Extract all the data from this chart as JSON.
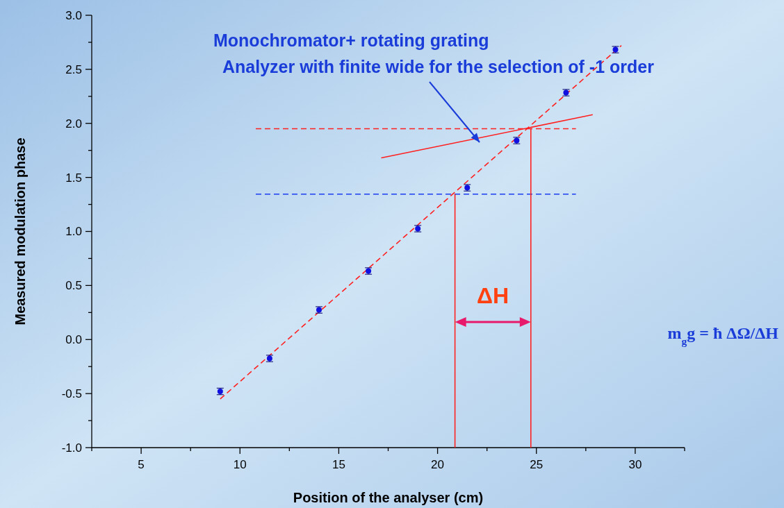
{
  "chart_data": {
    "type": "scatter",
    "xlabel": "Position of the analyser (cm)",
    "ylabel": "Measured modulation phase",
    "xlim": [
      2.5,
      32.5
    ],
    "ylim": [
      -1.0,
      3.0
    ],
    "xticks": [
      {
        "value": 2.5,
        "label": null
      },
      5,
      {
        "value": 7.5,
        "label": null
      },
      10,
      {
        "value": 12.5,
        "label": null
      },
      15,
      {
        "value": 17.5,
        "label": null
      },
      20,
      {
        "value": 22.5,
        "label": null
      },
      25,
      {
        "value": 27.5,
        "label": null
      },
      30,
      {
        "value": 32.5,
        "label": null
      }
    ],
    "yticks": [
      {
        "value": -1.0,
        "label": "-1.0"
      },
      {
        "value": -0.75,
        "label": null
      },
      {
        "value": -0.5,
        "label": "-0.5"
      },
      {
        "value": -0.25,
        "label": null
      },
      {
        "value": 0,
        "label": "0.0"
      },
      {
        "value": 0.25,
        "label": null
      },
      {
        "value": 0.5,
        "label": "0.5"
      },
      {
        "value": 0.75,
        "label": null
      },
      {
        "value": 1.0,
        "label": "1.0"
      },
      {
        "value": 1.25,
        "label": null
      },
      {
        "value": 1.5,
        "label": "1.5"
      },
      {
        "value": 1.75,
        "label": null
      },
      {
        "value": 2.0,
        "label": "2.0"
      },
      {
        "value": 2.25,
        "label": null
      },
      {
        "value": 2.5,
        "label": "2.5"
      },
      {
        "value": 2.75,
        "label": null
      },
      {
        "value": 3.0,
        "label": "3.0"
      }
    ],
    "grid": false,
    "series": [
      {
        "type": "line",
        "color": "#ff2020",
        "line_style": "dashed",
        "marker": "none",
        "x": [
          9.0,
          29.3
        ],
        "values": [
          -0.55,
          2.72
        ]
      },
      {
        "type": "line",
        "color": "#ff2020",
        "line_style": "solid",
        "marker": "none",
        "x": [
          17.15,
          27.85
        ],
        "values": [
          1.68,
          2.08
        ]
      },
      {
        "type": "line",
        "color": "#ff2020",
        "line_style": "dashed",
        "marker": "none",
        "x": [
          10.8,
          27.0
        ],
        "values": [
          1.95,
          1.95
        ]
      },
      {
        "type": "line",
        "color": "#1a3cf0",
        "line_style": "dashed",
        "marker": "none",
        "x": [
          10.8,
          27.0
        ],
        "values": [
          1.345,
          1.345
        ]
      },
      {
        "type": "line",
        "color": "#ff2020",
        "line_style": "solid",
        "marker": "none",
        "x": [
          20.88,
          20.88
        ],
        "values": [
          -1.0,
          1.345
        ]
      },
      {
        "type": "line",
        "color": "#ff2020",
        "line_style": "solid",
        "marker": "none",
        "x": [
          24.72,
          24.72
        ],
        "values": [
          -1.0,
          1.95
        ]
      },
      {
        "color": "#1010e0",
        "marker": "circle",
        "x": [
          9,
          11.5,
          14,
          16.5,
          19,
          21.5,
          24,
          26.5,
          29
        ],
        "values": [
          -0.48,
          -0.175,
          0.274,
          0.634,
          1.026,
          1.404,
          1.841,
          2.284,
          2.682
        ],
        "errors": [
          0.03,
          0.03,
          0.03,
          0.03,
          0.03,
          0.03,
          0.03,
          0.03,
          0.03
        ]
      }
    ],
    "annotations": [
      "Monochromator+ rotating grating\nAnalyzer with finite  wide for the selection of -1 order",
      "ΔH",
      "m$_{g}$g = ħ ΔΩ/ΔH"
    ]
  }
}
